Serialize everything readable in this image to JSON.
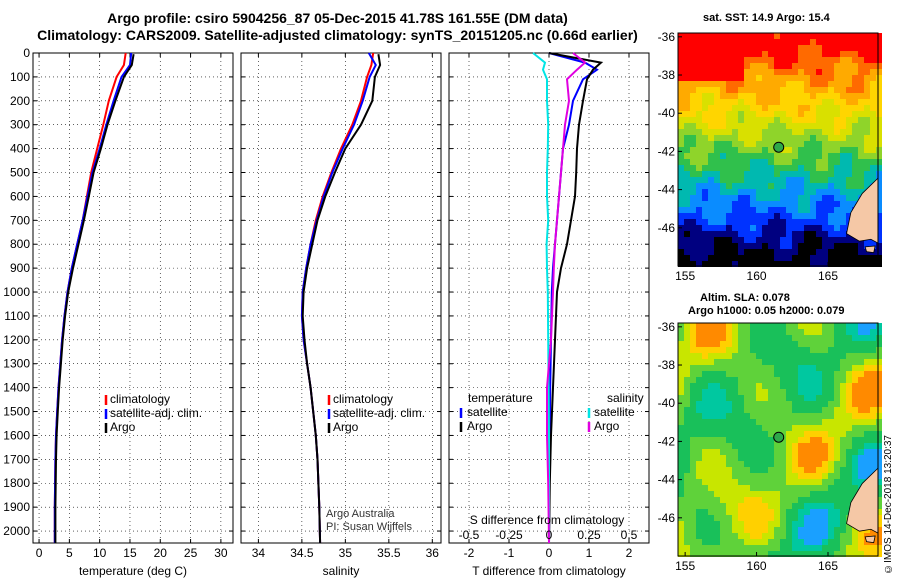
{
  "header": {
    "line1": "Argo profile: csiro 5904256_87 05-Dec-2015 41.78S 161.55E (DM data)",
    "line2": "Climatology: CARS2009. Satellite-adjusted climatology: synTS_20151205.nc (0.66d earlier)"
  },
  "chart_data": [
    {
      "type": "line",
      "xlabel": "temperature (deg C)",
      "ylim": [
        2050,
        0
      ],
      "xlim": [
        -1,
        32
      ],
      "xticks": [
        "0",
        "5",
        "10",
        "15",
        "20",
        "25",
        "30"
      ],
      "yticks": [
        "0",
        "100",
        "200",
        "300",
        "400",
        "500",
        "600",
        "700",
        "800",
        "900",
        "1000",
        "1100",
        "1200",
        "1300",
        "1400",
        "1500",
        "1600",
        "1700",
        "1800",
        "1900",
        "2000"
      ],
      "legend": [
        "climatology",
        "satellite-adj. clim.",
        "Argo"
      ],
      "series": [
        {
          "name": "climatology",
          "color": "#ff0000",
          "x": [
            14.3,
            14.0,
            12.8,
            11.5,
            10.6,
            9.6,
            8.6,
            7.9,
            7.2,
            6.3,
            5.4,
            4.7,
            4.2,
            3.8,
            3.5,
            3.2,
            3.0,
            2.8,
            2.7,
            2.6,
            2.6
          ],
          "y": [
            0,
            50,
            100,
            200,
            300,
            400,
            500,
            600,
            700,
            800,
            900,
            1000,
            1100,
            1200,
            1300,
            1400,
            1500,
            1600,
            1700,
            1900,
            2050
          ]
        },
        {
          "name": "satellite-adj. clim.",
          "color": "#0000ff",
          "x": [
            15.2,
            15.0,
            13.6,
            12.3,
            11.1,
            10.0,
            8.8,
            8.0,
            7.2,
            6.3,
            5.4,
            4.7,
            4.2,
            3.8,
            3.5,
            3.2,
            3.0,
            2.8,
            2.7,
            2.6,
            2.6
          ],
          "y": [
            0,
            50,
            100,
            200,
            300,
            400,
            500,
            600,
            700,
            800,
            900,
            1000,
            1100,
            1200,
            1300,
            1400,
            1500,
            1600,
            1700,
            1900,
            2050
          ]
        },
        {
          "name": "Argo",
          "color": "#000000",
          "x": [
            15.6,
            15.3,
            14.0,
            12.6,
            11.3,
            10.2,
            9.0,
            8.2,
            7.4,
            6.5,
            5.6,
            4.8,
            4.3,
            3.9,
            3.6,
            3.3,
            3.1,
            2.9,
            2.8,
            2.7,
            2.7
          ],
          "y": [
            5,
            50,
            100,
            200,
            300,
            400,
            500,
            600,
            700,
            800,
            900,
            1000,
            1100,
            1200,
            1300,
            1400,
            1500,
            1600,
            1700,
            1900,
            2050
          ]
        }
      ]
    },
    {
      "type": "line",
      "xlabel": "salinity",
      "ylim": [
        2050,
        0
      ],
      "xlim": [
        33.8,
        36.1
      ],
      "xticks": [
        "34",
        "34.5",
        "35",
        "35.5",
        "36"
      ],
      "legend": [
        "climatology",
        "satellite-adj. clim.",
        "Argo"
      ],
      "annotations": [
        "Argo Australia",
        "PI: Susan Wijffels"
      ],
      "series": [
        {
          "name": "climatology",
          "color": "#ff0000",
          "x": [
            35.32,
            35.3,
            35.25,
            35.18,
            35.08,
            34.95,
            34.84,
            34.74,
            34.66,
            34.6,
            34.55,
            34.51,
            34.5,
            34.52,
            34.56,
            34.6,
            34.63,
            34.66,
            34.68,
            34.7,
            34.71
          ],
          "y": [
            0,
            50,
            100,
            200,
            300,
            400,
            500,
            600,
            700,
            800,
            900,
            1000,
            1100,
            1200,
            1300,
            1400,
            1500,
            1600,
            1700,
            1900,
            2050
          ]
        },
        {
          "name": "satellite-adj. clim.",
          "color": "#0000ff",
          "x": [
            35.27,
            35.35,
            35.28,
            35.2,
            35.1,
            34.97,
            34.85,
            34.75,
            34.67,
            34.6,
            34.55,
            34.51,
            34.5,
            34.52,
            34.56,
            34.6,
            34.63,
            34.66,
            34.68,
            34.7,
            34.71
          ],
          "y": [
            0,
            50,
            100,
            200,
            300,
            400,
            500,
            600,
            700,
            800,
            900,
            1000,
            1100,
            1200,
            1300,
            1400,
            1500,
            1600,
            1700,
            1900,
            2050
          ]
        },
        {
          "name": "Argo",
          "color": "#000000",
          "x": [
            35.38,
            35.4,
            35.34,
            35.31,
            35.18,
            35.0,
            34.88,
            34.77,
            34.68,
            34.62,
            34.56,
            34.52,
            34.51,
            34.53,
            34.56,
            34.6,
            34.63,
            34.66,
            34.68,
            34.7,
            34.71
          ],
          "y": [
            5,
            50,
            100,
            200,
            300,
            400,
            500,
            600,
            700,
            800,
            900,
            1000,
            1100,
            1200,
            1300,
            1400,
            1500,
            1600,
            1700,
            1900,
            2050
          ]
        }
      ]
    },
    {
      "type": "line",
      "xlabel": "T difference from climatology",
      "top_label": "S difference from climatology",
      "ylim": [
        2050,
        0
      ],
      "xlim": [
        -2.5,
        2.5
      ],
      "xticks": [
        "-2",
        "-1",
        "0",
        "1",
        "2"
      ],
      "top_ticks": [
        "-0.5",
        "-0.25",
        "0",
        "0.25",
        "0.5"
      ],
      "legend_left_title": "temperature",
      "legend_right_title": "salinity",
      "legend_left": [
        "satellite",
        "Argo"
      ],
      "legend_right": [
        "satellite",
        "Argo"
      ],
      "series": [
        {
          "name": "satellite",
          "group": "temperature",
          "color": "#0000ff",
          "x": [
            0.0,
            0.9,
            1.2,
            0.85,
            0.6,
            0.5,
            0.35,
            0.3,
            0.25,
            0.2,
            0.15,
            0.1,
            0.07,
            0.05,
            0.03,
            0.02,
            0.01,
            0.0
          ],
          "y": [
            0,
            40,
            70,
            110,
            200,
            300,
            400,
            500,
            600,
            700,
            800,
            900,
            1000,
            1200,
            1400,
            1600,
            1800,
            2050
          ]
        },
        {
          "name": "Argo",
          "group": "temperature",
          "color": "#000000",
          "x": [
            0.0,
            1.3,
            1.1,
            0.95,
            0.85,
            0.75,
            0.7,
            0.68,
            0.65,
            0.55,
            0.45,
            0.3,
            0.2,
            0.15,
            0.1,
            0.05,
            0.02,
            0.0
          ],
          "y": [
            0,
            40,
            70,
            110,
            200,
            300,
            400,
            500,
            600,
            700,
            800,
            900,
            1000,
            1200,
            1400,
            1600,
            1800,
            2050
          ]
        },
        {
          "name": "satellite",
          "group": "salinity",
          "color": "#00e5e5",
          "x": [
            -0.4,
            -0.1,
            -0.15,
            -0.05,
            -0.05,
            -0.02,
            -0.03,
            -0.05,
            -0.05,
            -0.02,
            -0.06,
            -0.05,
            -0.03,
            -0.02,
            -0.01,
            0.0,
            0.0,
            0.0
          ],
          "y": [
            0,
            40,
            70,
            110,
            200,
            300,
            400,
            500,
            600,
            700,
            800,
            900,
            1000,
            1200,
            1400,
            1600,
            1800,
            2050
          ]
        },
        {
          "name": "Argo",
          "group": "salinity",
          "color": "#e000e0",
          "x": [
            0.6,
            0.9,
            0.7,
            0.45,
            0.5,
            0.4,
            0.35,
            0.3,
            0.25,
            0.2,
            0.15,
            0.12,
            0.1,
            0.05,
            -0.05,
            -0.05,
            -0.02,
            0.0
          ],
          "y": [
            0,
            40,
            70,
            110,
            200,
            300,
            400,
            500,
            600,
            700,
            800,
            900,
            1000,
            1200,
            1400,
            1600,
            1800,
            2050
          ]
        }
      ]
    }
  ],
  "sst_map": {
    "title": "sat. SST: 14.9 Argo: 15.4",
    "yticks": [
      "-36",
      "-38",
      "-40",
      "-42",
      "-44",
      "-46"
    ],
    "xticks": [
      "155",
      "160",
      "165"
    ],
    "marker_lat": -41.78,
    "marker_lon": 161.55,
    "band_colors": [
      "#ff0000",
      "#ff6a00",
      "#ffaa00",
      "#ffd500",
      "#d9e000",
      "#8fd42a",
      "#30c04c",
      "#00b9b0",
      "#0a8cff",
      "#0033ff",
      "#000080",
      "#000000"
    ],
    "land_color": "#f5c8a6"
  },
  "sla_map": {
    "title_1": "Altim. SLA: 0.078",
    "title_2": "Argo h1000: 0.05 h2000: 0.079",
    "yticks": [
      "-36",
      "-38",
      "-40",
      "-42",
      "-44",
      "-46"
    ],
    "xticks": [
      "155",
      "160",
      "165"
    ],
    "land_color": "#f5c8a6"
  },
  "credit": "©IMOS 14-Dec-2018 13:20:37"
}
